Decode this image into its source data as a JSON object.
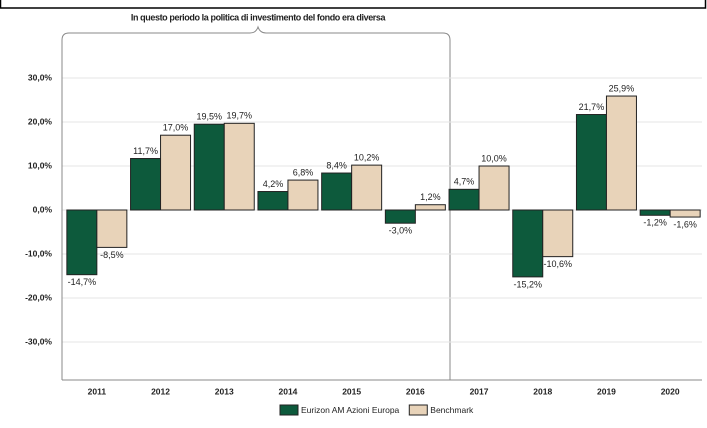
{
  "chart_data": {
    "type": "bar",
    "annotation": "In questo periodo la politica di investimento del fondo era diversa",
    "categories": [
      "2011",
      "2012",
      "2013",
      "2014",
      "2015",
      "2016",
      "2017",
      "2018",
      "2019",
      "2020"
    ],
    "series": [
      {
        "name": "Eurizon AM Azioni Europa",
        "color": "#0d5a3c",
        "values": [
          -14.7,
          11.7,
          19.5,
          4.2,
          8.4,
          -3.0,
          4.7,
          -15.2,
          21.7,
          -1.2
        ],
        "value_labels": [
          "-14,7%",
          "11,7%",
          "19,5%",
          "4,2%",
          "8,4%",
          "-3,0%",
          "4,7%",
          "-15,2%",
          "21,7%",
          "-1,2%"
        ]
      },
      {
        "name": "Benchmark",
        "color": "#e8d3b9",
        "values": [
          -8.5,
          17.0,
          19.7,
          6.8,
          10.2,
          1.2,
          10.0,
          -10.6,
          25.9,
          -1.6
        ],
        "value_labels": [
          "-8,5%",
          "17,0%",
          "19,7%",
          "6,8%",
          "10,2%",
          "1,2%",
          "10,0%",
          "-10,6%",
          "25,9%",
          "-1,6%"
        ]
      }
    ],
    "ylim": [
      -39,
      39
    ],
    "yticks": [
      {
        "value": -30,
        "label": "-30,0%"
      },
      {
        "value": -20,
        "label": "-20,0%"
      },
      {
        "value": -10,
        "label": "-10,0%"
      },
      {
        "value": 0,
        "label": "0,0%"
      },
      {
        "value": 10,
        "label": "10,0%"
      },
      {
        "value": 20,
        "label": "20,0%"
      },
      {
        "value": 30,
        "label": "30,0%"
      }
    ],
    "grid": true,
    "legend": "bottom"
  }
}
